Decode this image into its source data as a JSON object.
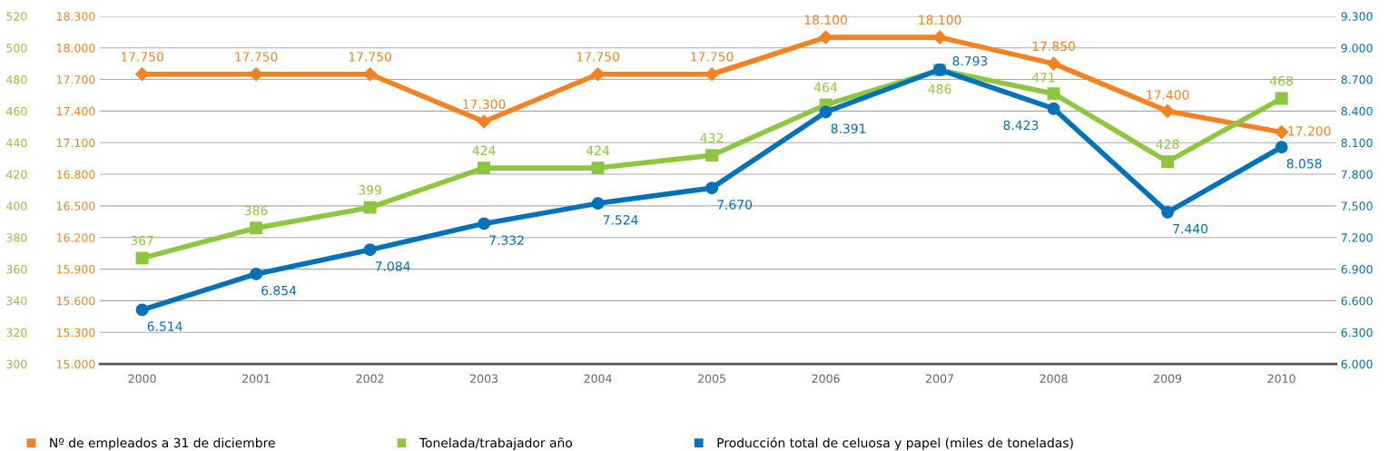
{
  "chart_data": {
    "type": "line",
    "categories": [
      "2000",
      "2001",
      "2002",
      "2003",
      "2004",
      "2005",
      "2006",
      "2007",
      "2008",
      "2009",
      "2010"
    ],
    "series": [
      {
        "name": "Nº de empleados a 31 de diciembre",
        "color": "#f58220",
        "marker": "diamond",
        "values": [
          17750,
          17750,
          17750,
          17300,
          17750,
          17750,
          18100,
          18100,
          17850,
          17400,
          17200
        ],
        "value_labels": [
          "17.750",
          "17.750",
          "17.750",
          "17.300",
          "17.750",
          "17.750",
          "18.100",
          "18.100",
          "17.850",
          "17.400",
          "17.200"
        ]
      },
      {
        "name": "Tonelada/trabajador año",
        "color": "#8dc63f",
        "marker": "square",
        "axis": "y3",
        "values": [
          367,
          386,
          399,
          424,
          424,
          432,
          464,
          486,
          471,
          428,
          468
        ],
        "value_labels": [
          "367",
          "386",
          "399",
          "424",
          "424",
          "432",
          "464",
          "486",
          "471",
          "428",
          "468"
        ]
      },
      {
        "name": "Producción total de celuosa y papel (miles de toneladas)",
        "color": "#0072bc",
        "marker": "circle",
        "axis": "y2",
        "values": [
          6514,
          6854,
          7084,
          7332,
          7524,
          7670,
          8391,
          8793,
          8423,
          7440,
          8058
        ],
        "value_labels": [
          "6.514",
          "6.854",
          "7.084",
          "7.332",
          "7.524",
          "7.670",
          "8.391",
          "8.793",
          "8.423",
          "7.440",
          "8.058"
        ]
      }
    ],
    "ylim": [
      15000,
      18300
    ],
    "yticks": [
      {
        "value": 15000,
        "label": "15.000"
      },
      {
        "value": 15300,
        "label": "15.300"
      },
      {
        "value": 15600,
        "label": "15.600"
      },
      {
        "value": 15900,
        "label": "15.900"
      },
      {
        "value": 16200,
        "label": "16.200"
      },
      {
        "value": 16500,
        "label": "16.500"
      },
      {
        "value": 16800,
        "label": "16.800"
      },
      {
        "value": 17100,
        "label": "17.100"
      },
      {
        "value": 17400,
        "label": "17.400"
      },
      {
        "value": 17700,
        "label": "17.700"
      },
      {
        "value": 18000,
        "label": "18.000"
      },
      {
        "value": 18300,
        "label": "18.300"
      }
    ],
    "y2lim": [
      6000,
      9300
    ],
    "y2ticks": [
      {
        "value": 6000,
        "label": "6.000"
      },
      {
        "value": 6300,
        "label": "6.300"
      },
      {
        "value": 6600,
        "label": "6.600"
      },
      {
        "value": 6900,
        "label": "6.900"
      },
      {
        "value": 7200,
        "label": "7.200"
      },
      {
        "value": 7500,
        "label": "7.500"
      },
      {
        "value": 7800,
        "label": "7.800"
      },
      {
        "value": 8100,
        "label": "8.100"
      },
      {
        "value": 8400,
        "label": "8.400"
      },
      {
        "value": 8700,
        "label": "8.700"
      },
      {
        "value": 9000,
        "label": "9.000"
      },
      {
        "value": 9300,
        "label": "9.300"
      }
    ],
    "y3lim": [
      300,
      520
    ],
    "y3ticks": [
      300,
      320,
      340,
      360,
      380,
      400,
      420,
      440,
      460,
      480,
      500,
      520
    ],
    "grid": "y",
    "legend": "bottom",
    "line_style": "solid"
  }
}
